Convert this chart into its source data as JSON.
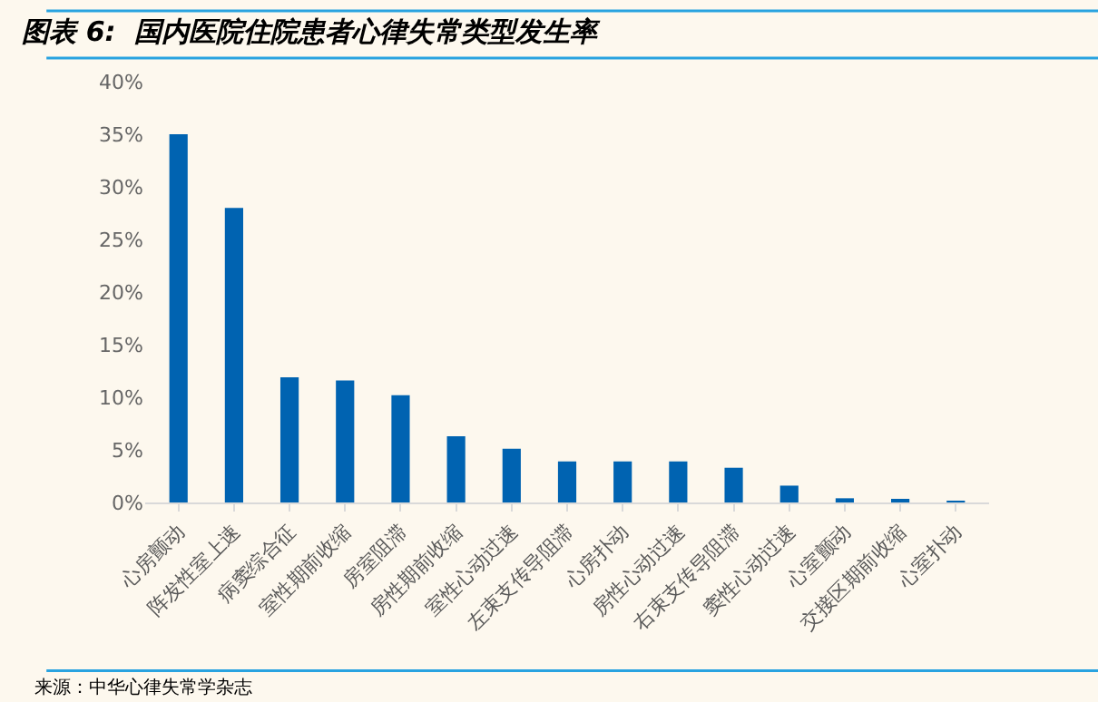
{
  "chart_data": {
    "type": "bar",
    "title": "图表 6:  国内医院住院患者心律失常类型发生率",
    "categories": [
      "心房颤动",
      "阵发性室上速",
      "病窦综合征",
      "室性期前收缩",
      "房室阻滞",
      "房性期前收缩",
      "室性心动过速",
      "左束支传导阻滞",
      "心房扑动",
      "房性心动过速",
      "右束支传导阻滞",
      "窦性心动过速",
      "心室颤动",
      "交接区期前收缩",
      "心室扑动"
    ],
    "values": [
      35,
      28,
      11.9,
      11.6,
      10.2,
      6.3,
      5.1,
      3.9,
      3.9,
      3.9,
      3.3,
      1.6,
      0.4,
      0.2,
      0.1
    ],
    "color": "#0063b1",
    "ylim": [
      0,
      40
    ],
    "yticks": [
      {
        "value": 0,
        "label": "0%"
      },
      {
        "value": 5,
        "label": "5%"
      },
      {
        "value": 10,
        "label": "10%"
      },
      {
        "value": 15,
        "label": "15%"
      },
      {
        "value": 20,
        "label": "20%"
      },
      {
        "value": 25,
        "label": "25%"
      },
      {
        "value": 30,
        "label": "30%"
      },
      {
        "value": 35,
        "label": "35%"
      },
      {
        "value": 40,
        "label": "40%"
      }
    ],
    "grid": false,
    "legend": false,
    "annotations": [
      "来源：中华心律失常学杂志"
    ]
  }
}
